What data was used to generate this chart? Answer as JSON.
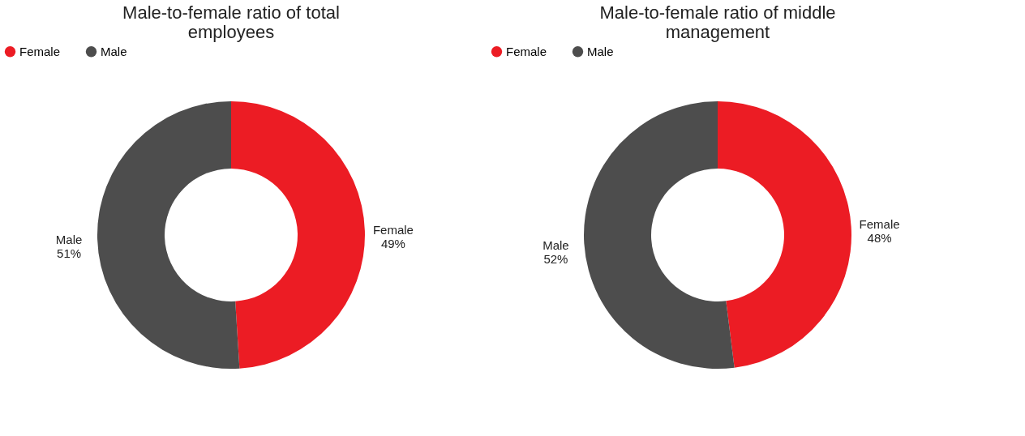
{
  "chart_data": [
    {
      "type": "donut",
      "title": "Male-to-female ratio of total employees",
      "categories": [
        "Female",
        "Male"
      ],
      "values": [
        49,
        51
      ],
      "value_labels": [
        "49%",
        "51%"
      ],
      "colors": [
        "#ec1c24",
        "#4d4d4d"
      ],
      "legend": "top"
    },
    {
      "type": "donut",
      "title": "Male-to-female ratio of middle management",
      "categories": [
        "Female",
        "Male"
      ],
      "values": [
        48,
        52
      ],
      "value_labels": [
        "48%",
        "52%"
      ],
      "colors": [
        "#ec1c24",
        "#4d4d4d"
      ],
      "legend": "top"
    }
  ]
}
